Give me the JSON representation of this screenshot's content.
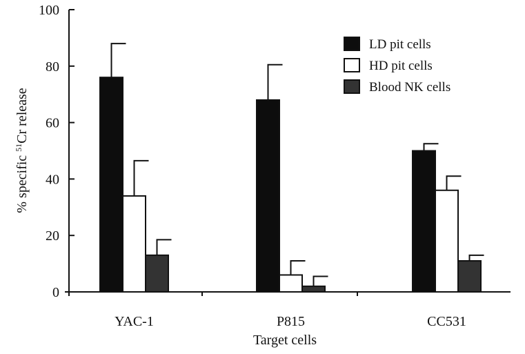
{
  "chart_data": {
    "type": "bar",
    "categories": [
      "YAC-1",
      "P815",
      "CC531"
    ],
    "series": [
      {
        "name": "LD pit cells",
        "values": [
          76,
          68,
          50
        ],
        "errors": [
          12,
          12.5,
          2.5
        ],
        "fill": "#0d0d0d"
      },
      {
        "name": "HD pit cells",
        "values": [
          34,
          6,
          36
        ],
        "errors": [
          12.5,
          5,
          5
        ],
        "fill": "#ffffff"
      },
      {
        "name": "Blood NK cells",
        "values": [
          13,
          2,
          11
        ],
        "errors": [
          5.5,
          3.5,
          2
        ],
        "fill": "#333333"
      }
    ],
    "title": "",
    "xlabel": "Target cells",
    "ylabel_parts": {
      "before": "% specific ",
      "superscript": "51",
      "after": "Cr release"
    },
    "ylim": [
      0,
      100
    ],
    "yticks": [
      0,
      20,
      40,
      60,
      80,
      100
    ],
    "grid": false,
    "legend_position": "top-right"
  }
}
